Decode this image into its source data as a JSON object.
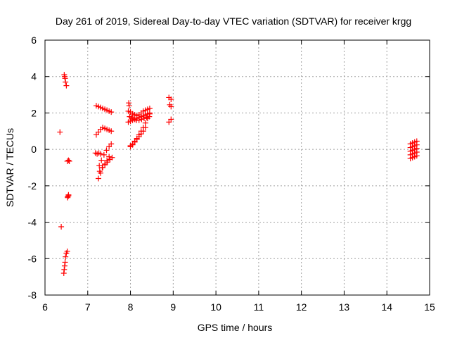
{
  "chart_data": {
    "type": "scatter",
    "title": "Day 261 of 2019, Sidereal Day-to-day VTEC variation (SDTVAR) for receiver krgg",
    "xlabel": "GPS time / hours",
    "ylabel": "SDTVAR / TECUs",
    "xlim": [
      6,
      15
    ],
    "ylim": [
      -8,
      6
    ],
    "xticks": [
      "6",
      "7",
      "8",
      "9",
      "10",
      "11",
      "12",
      "13",
      "14",
      "15"
    ],
    "yticks": [
      "-8",
      "-6",
      "-4",
      "-2",
      "0",
      "2",
      "4",
      "6"
    ],
    "grid": true,
    "marker": "+",
    "marker_color": "#ff0000",
    "series": [
      {
        "name": "SDTVAR",
        "x": [
          6.35,
          6.45,
          6.46,
          6.47,
          6.48,
          6.5,
          6.52,
          6.55,
          6.57,
          6.38,
          6.44,
          6.45,
          6.46,
          6.47,
          6.48,
          6.5,
          6.52,
          6.53,
          6.55,
          6.53,
          6.55,
          7.2,
          7.25,
          7.3,
          7.35,
          7.4,
          7.45,
          7.5,
          7.55,
          7.2,
          7.25,
          7.3,
          7.35,
          7.4,
          7.45,
          7.5,
          7.55,
          7.18,
          7.22,
          7.26,
          7.3,
          7.25,
          7.3,
          7.35,
          7.4,
          7.45,
          7.5,
          7.27,
          7.32,
          7.38,
          7.44,
          7.5,
          7.55,
          7.28,
          7.34,
          7.4,
          7.46,
          7.52,
          7.57,
          7.96,
          7.97,
          7.95,
          8.0,
          8.05,
          8.1,
          8.15,
          8.2,
          8.25,
          8.3,
          8.35,
          8.4,
          8.45,
          7.98,
          8.02,
          8.06,
          8.1,
          8.14,
          8.2,
          8.26,
          8.32,
          8.38,
          8.44,
          8.0,
          8.05,
          8.1,
          8.15,
          8.2,
          8.25,
          8.3,
          8.35,
          8.4,
          8.45,
          8.0,
          8.05,
          8.1,
          8.15,
          8.2,
          8.25,
          8.3,
          8.35,
          7.95,
          8.0,
          8.05,
          8.1,
          8.15,
          8.2,
          8.25,
          8.3,
          8.35,
          8.4,
          8.45,
          8.9,
          8.95,
          8.92,
          8.95,
          8.9,
          8.95,
          14.55,
          14.6,
          14.65,
          14.7,
          14.55,
          14.6,
          14.65,
          14.7,
          14.55,
          14.6,
          14.65,
          14.7,
          14.55,
          14.6,
          14.65,
          14.7,
          14.55,
          14.6,
          14.65,
          14.7
        ],
        "y": [
          0.95,
          4.1,
          4.0,
          3.9,
          3.7,
          3.5,
          -0.65,
          -0.6,
          -0.65,
          -4.25,
          -6.8,
          -6.6,
          -6.4,
          -6.2,
          -5.9,
          -5.7,
          -5.6,
          -2.6,
          -2.5,
          -2.65,
          -2.55,
          2.4,
          2.35,
          2.3,
          2.25,
          2.2,
          2.15,
          2.1,
          2.05,
          0.8,
          0.95,
          1.1,
          1.2,
          1.15,
          1.1,
          1.05,
          1.0,
          -0.2,
          -0.25,
          -0.2,
          -0.25,
          -1.6,
          -1.3,
          -1.0,
          -0.8,
          -0.6,
          -0.4,
          -0.9,
          -0.6,
          -0.3,
          -0.05,
          0.15,
          0.3,
          -1.2,
          -1.0,
          -0.85,
          -0.7,
          -0.55,
          -0.45,
          2.55,
          2.4,
          2.1,
          2.05,
          1.95,
          1.9,
          1.85,
          1.9,
          2.0,
          2.1,
          2.15,
          2.2,
          2.25,
          1.8,
          1.75,
          1.7,
          1.65,
          1.6,
          1.6,
          1.65,
          1.7,
          1.75,
          1.8,
          0.2,
          0.3,
          0.45,
          0.6,
          0.8,
          1.0,
          1.2,
          1.45,
          1.7,
          1.95,
          0.15,
          0.25,
          0.4,
          0.55,
          0.7,
          0.85,
          1.0,
          1.2,
          1.5,
          1.55,
          1.6,
          1.65,
          1.7,
          1.75,
          1.8,
          1.85,
          1.9,
          1.95,
          2.0,
          2.85,
          2.75,
          2.45,
          2.35,
          1.5,
          1.65,
          0.3,
          0.35,
          0.4,
          0.45,
          0.1,
          0.15,
          0.2,
          0.25,
          -0.1,
          -0.05,
          0.0,
          0.05,
          -0.3,
          -0.25,
          -0.2,
          -0.15,
          -0.5,
          -0.45,
          -0.4,
          -0.35
        ]
      }
    ]
  }
}
